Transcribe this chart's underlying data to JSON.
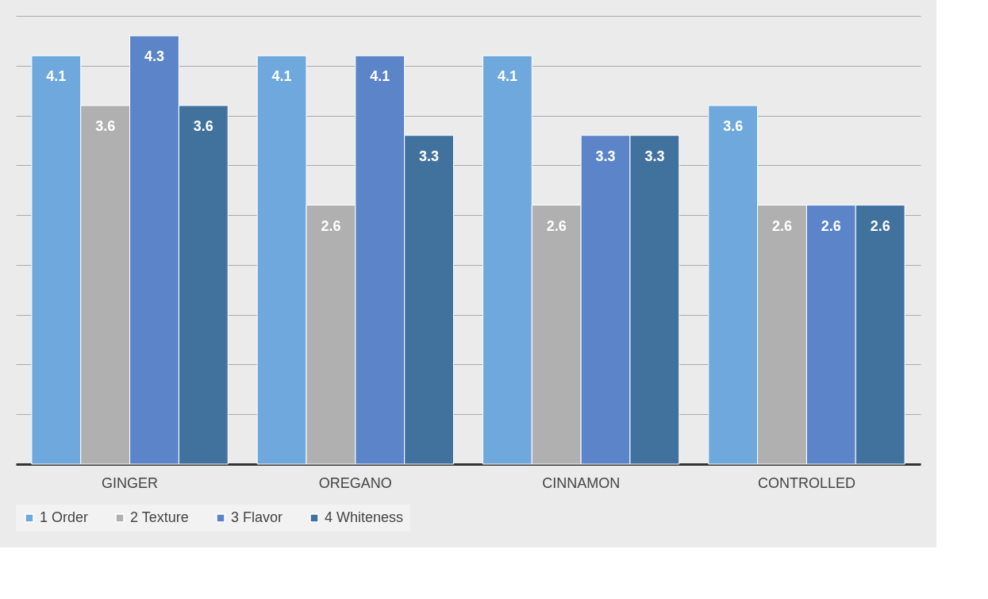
{
  "chart_data": {
    "type": "bar",
    "categories": [
      "GINGER",
      "OREGANO",
      "CINNAMON",
      "CONTROLLED"
    ],
    "series": [
      {
        "name": "1 Order",
        "color": "#6fa8dc",
        "values": [
          4.1,
          4.1,
          4.1,
          3.6
        ]
      },
      {
        "name": "2 Texture",
        "color": "#b0b0b0",
        "values": [
          3.6,
          2.6,
          2.6,
          2.6
        ]
      },
      {
        "name": "3 Flavor",
        "color": "#5b84c9",
        "values": [
          4.3,
          4.1,
          3.3,
          2.6
        ]
      },
      {
        "name": "4 Whiteness",
        "color": "#41729e",
        "values": [
          3.6,
          3.3,
          3.3,
          2.6
        ]
      }
    ],
    "ylim": [
      0,
      4.5
    ],
    "yticks": [
      {
        "value": 0,
        "label": null
      },
      {
        "value": 0.5,
        "label": null
      },
      {
        "value": 1,
        "label": null
      },
      {
        "value": 1.5,
        "label": null
      },
      {
        "value": 2,
        "label": null
      },
      {
        "value": 2.5,
        "label": null
      },
      {
        "value": 3,
        "label": null
      },
      {
        "value": 3.5,
        "label": null
      },
      {
        "value": 4,
        "label": null
      },
      {
        "value": 4.5,
        "label": null
      }
    ],
    "tick_labels": "x",
    "grid": "y",
    "data_labels": true,
    "legend": "bottom"
  }
}
